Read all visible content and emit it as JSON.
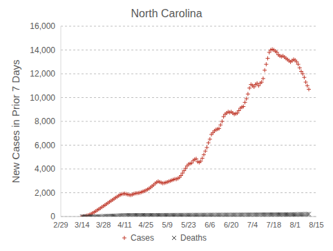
{
  "chart_data": {
    "type": "scatter",
    "title": "North Carolina",
    "ylabel": "New Cases in Prior 7 Days",
    "x": [
      14,
      15,
      16,
      17,
      18,
      19,
      20,
      21,
      22,
      23,
      24,
      25,
      26,
      27,
      28,
      29,
      30,
      31,
      32,
      33,
      34,
      35,
      36,
      37,
      38,
      39,
      40,
      41,
      42,
      43,
      44,
      45,
      46,
      47,
      48,
      49,
      50,
      51,
      52,
      53,
      54,
      55,
      56,
      57,
      58,
      59,
      60,
      61,
      62,
      63,
      64,
      65,
      66,
      67,
      68,
      69,
      70,
      71,
      72,
      73,
      74,
      75,
      76,
      77,
      78,
      79,
      80,
      81,
      82,
      83,
      84,
      85,
      86,
      87,
      88,
      89,
      90,
      91,
      92,
      93,
      94,
      95,
      96,
      97,
      98,
      99,
      100,
      101,
      102,
      103,
      104,
      105,
      106,
      107,
      108,
      109,
      110,
      111,
      112,
      113,
      114,
      115,
      116,
      117,
      118,
      119,
      120,
      121,
      122,
      123,
      124,
      125,
      126,
      127,
      128,
      129,
      130,
      131,
      132,
      133,
      134,
      135,
      136,
      137,
      138,
      139,
      140,
      141,
      142,
      143,
      144,
      145,
      146,
      147,
      148,
      149,
      150,
      151,
      152,
      153,
      154,
      155,
      156,
      157,
      158,
      159,
      160,
      161,
      162,
      163
    ],
    "series": [
      {
        "name": "Cases",
        "color": "#c0392b",
        "marker": "plus",
        "values": [
          10,
          20,
          40,
          70,
          110,
          160,
          220,
          290,
          370,
          450,
          540,
          620,
          700,
          790,
          880,
          960,
          1050,
          1140,
          1230,
          1320,
          1400,
          1490,
          1580,
          1660,
          1750,
          1820,
          1880,
          1900,
          1920,
          1890,
          1850,
          1820,
          1800,
          1850,
          1900,
          1950,
          1960,
          1980,
          2000,
          2050,
          2100,
          2150,
          2200,
          2280,
          2350,
          2450,
          2550,
          2650,
          2780,
          2880,
          2950,
          2900,
          2850,
          2800,
          2820,
          2860,
          2900,
          2950,
          3000,
          3050,
          3100,
          3150,
          3150,
          3200,
          3300,
          3450,
          3650,
          3850,
          4050,
          4250,
          4400,
          4450,
          4500,
          4700,
          4800,
          4850,
          4600,
          4550,
          4650,
          4900,
          5200,
          5500,
          5800,
          6200,
          6500,
          6900,
          7050,
          7200,
          7300,
          7350,
          7400,
          7700,
          8000,
          8400,
          8600,
          8700,
          8800,
          8750,
          8800,
          8700,
          8600,
          8650,
          8700,
          8900,
          9100,
          9200,
          9250,
          9600,
          9900,
          10300,
          10800,
          11100,
          11000,
          10900,
          11100,
          11200,
          11000,
          11200,
          11300,
          11600,
          12300,
          12800,
          13300,
          13800,
          14000,
          14050,
          14000,
          13900,
          13800,
          13600,
          13500,
          13450,
          13500,
          13400,
          13300,
          13200,
          13100,
          13000,
          13100,
          13200,
          13150,
          13000,
          12800,
          12500,
          12200,
          12000,
          11700,
          11300,
          11000,
          10700
        ]
      },
      {
        "name": "Deaths",
        "color": "#404040",
        "marker": "cross",
        "values": [
          0,
          0,
          0,
          0,
          0,
          0,
          0,
          2,
          3,
          5,
          8,
          10,
          14,
          18,
          22,
          27,
          32,
          38,
          44,
          50,
          56,
          62,
          68,
          74,
          80,
          85,
          90,
          95,
          98,
          100,
          102,
          104,
          105,
          106,
          107,
          108,
          108,
          109,
          110,
          110,
          111,
          111,
          112,
          112,
          112,
          113,
          113,
          114,
          114,
          115,
          116,
          117,
          118,
          118,
          119,
          120,
          120,
          121,
          121,
          122,
          122,
          123,
          123,
          124,
          124,
          125,
          125,
          126,
          126,
          127,
          127,
          128,
          128,
          129,
          129,
          130,
          130,
          131,
          131,
          132,
          132,
          133,
          133,
          134,
          134,
          135,
          135,
          136,
          136,
          137,
          137,
          138,
          138,
          139,
          139,
          140,
          140,
          141,
          141,
          142,
          142,
          143,
          143,
          144,
          144,
          145,
          145,
          146,
          146,
          147,
          147,
          148,
          148,
          149,
          150,
          151,
          152,
          153,
          154,
          155,
          156,
          157,
          158,
          159,
          160,
          161,
          162,
          163,
          164,
          165,
          166,
          167,
          168,
          169,
          170,
          172,
          174,
          176,
          178,
          180,
          182,
          184,
          186,
          188,
          190,
          192,
          194,
          196,
          198,
          200
        ]
      }
    ],
    "xlim": [
      0,
      168
    ],
    "xticks": [
      {
        "value": 0,
        "label": "2/29"
      },
      {
        "value": 14,
        "label": "3/14"
      },
      {
        "value": 28,
        "label": "3/28"
      },
      {
        "value": 42,
        "label": "4/11"
      },
      {
        "value": 56,
        "label": "4/25"
      },
      {
        "value": 70,
        "label": "5/9"
      },
      {
        "value": 84,
        "label": "5/23"
      },
      {
        "value": 98,
        "label": "6/6"
      },
      {
        "value": 112,
        "label": "6/20"
      },
      {
        "value": 126,
        "label": "7/4"
      },
      {
        "value": 140,
        "label": "7/18"
      },
      {
        "value": 154,
        "label": "8/1"
      },
      {
        "value": 168,
        "label": "8/15"
      }
    ],
    "ylim": [
      0,
      16000
    ],
    "yticks": [
      0,
      {
        "value": 2000,
        "label": "2,000"
      },
      {
        "value": 4000,
        "label": "4,000"
      },
      {
        "value": 6000,
        "label": "6,000"
      },
      {
        "value": 8000,
        "label": "8,000"
      },
      {
        "value": 10000,
        "label": "10,000"
      },
      {
        "value": 12000,
        "label": "12,000"
      },
      {
        "value": 14000,
        "label": "14,000"
      },
      {
        "value": 16000,
        "label": "16,000"
      }
    ],
    "grid": true,
    "legend": "bottom"
  }
}
